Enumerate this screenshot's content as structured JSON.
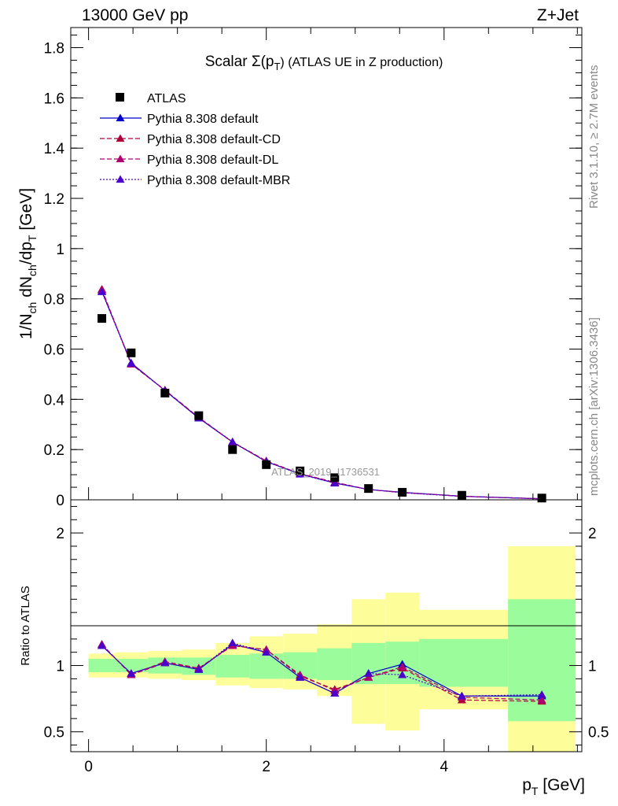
{
  "header": {
    "left": "13000 GeV pp",
    "right": "Z+Jet"
  },
  "side": {
    "rivet": "Rivet 3.1.10, ≥ 2.7M events",
    "mcplots": "mcplots.cern.ch [arXiv:1306.3436]"
  },
  "colors": {
    "data": "#000000",
    "default": "#0000cc",
    "default_cd": "#b0003a",
    "default_dl": "#b0006f",
    "default_mbr": "#4b00cc",
    "band_inner": "#9afc9a",
    "band_outer": "#fdfd9a"
  },
  "chart_data": [
    {
      "type": "scatter",
      "title": "Scalar Σ(p_T) (ATLAS UE in Z production)",
      "title_main": "Scalar Σ(p",
      "title_sub": "T",
      "title_rest": ") (ATLAS UE in Z production)",
      "ylabel": "1/N_ch dN_ch/dp_T [GeV]",
      "ylabel_parts": [
        "1/N",
        "ch",
        " dN",
        "ch",
        "/dp",
        "T",
        " [GeV]"
      ],
      "xlim": [
        -0.2,
        5.55
      ],
      "ylim": [
        0,
        1.88
      ],
      "yticks": [
        0,
        0.2,
        0.4,
        0.6,
        0.8,
        1,
        1.2,
        1.4,
        1.6,
        1.8
      ],
      "ytick_labels": [
        "0",
        "0.2",
        "0.4",
        "0.6",
        "0.8",
        "1",
        "1.2",
        "1.4",
        "1.6",
        "1.8"
      ],
      "watermark": "ATLAS_2019_I1736531",
      "x": [
        0.15,
        0.48,
        0.86,
        1.24,
        1.62,
        2.0,
        2.38,
        2.77,
        3.15,
        3.53,
        4.2,
        5.1
      ],
      "series": [
        {
          "name": "ATLAS",
          "style": "data",
          "color": "#000000",
          "values": [
            0.722,
            0.585,
            0.425,
            0.335,
            0.2,
            0.14,
            0.115,
            0.088,
            0.045,
            0.03,
            0.018,
            0.007
          ]
        },
        {
          "name": "Pythia 8.308 default",
          "style": "solid",
          "color": "#0000cc",
          "values": [
            0.83,
            0.545,
            0.435,
            0.325,
            0.23,
            0.152,
            0.103,
            0.067,
            0.041,
            0.03,
            0.014,
            0.004
          ]
        },
        {
          "name": "Pythia 8.308 default-CD",
          "style": "dashed",
          "color": "#b0003a",
          "values": [
            0.838,
            0.54,
            0.437,
            0.328,
            0.23,
            0.155,
            0.104,
            0.07,
            0.041,
            0.029,
            0.014,
            0.004
          ]
        },
        {
          "name": "Pythia 8.308 default-DL",
          "style": "dashed",
          "color": "#b0006f",
          "values": [
            0.835,
            0.54,
            0.436,
            0.327,
            0.229,
            0.153,
            0.104,
            0.069,
            0.041,
            0.029,
            0.014,
            0.004
          ]
        },
        {
          "name": "Pythia 8.308 default-MBR",
          "style": "dotted",
          "color": "#4b00cc",
          "values": [
            0.828,
            0.543,
            0.435,
            0.326,
            0.231,
            0.152,
            0.102,
            0.066,
            0.042,
            0.028,
            0.014,
            0.004
          ]
        }
      ]
    },
    {
      "type": "line",
      "title": "",
      "ylabel": "Ratio to ATLAS",
      "xlabel": "p_T [GeV]",
      "xlabel_main": "p",
      "xlabel_sub": "T",
      "xlabel_rest": " [GeV]",
      "xlim": [
        -0.2,
        5.55
      ],
      "ylim": [
        0.35,
        2.25
      ],
      "xticks": [
        0,
        2,
        4
      ],
      "xtick_labels": [
        "0",
        "2",
        "4"
      ],
      "yticks": [
        0.5,
        1,
        2
      ],
      "ytick_labels": [
        "0.5",
        "1",
        "2"
      ],
      "reference": 1,
      "bands": {
        "edges": [
          0.0,
          0.3,
          0.67,
          1.05,
          1.43,
          1.81,
          2.19,
          2.57,
          2.96,
          3.34,
          3.72,
          4.72,
          5.48
        ],
        "inner_low": [
          0.95,
          0.95,
          0.94,
          0.93,
          0.91,
          0.9,
          0.9,
          0.89,
          0.86,
          0.86,
          0.84,
          0.58
        ],
        "inner_high": [
          1.05,
          1.05,
          1.06,
          1.06,
          1.08,
          1.09,
          1.1,
          1.13,
          1.17,
          1.18,
          1.2,
          1.5
        ],
        "outer_low": [
          0.91,
          0.91,
          0.9,
          0.89,
          0.85,
          0.83,
          0.82,
          0.77,
          0.56,
          0.51,
          0.67,
          0.3
        ],
        "outer_high": [
          1.09,
          1.1,
          1.11,
          1.12,
          1.17,
          1.22,
          1.24,
          1.31,
          1.5,
          1.55,
          1.42,
          1.9
        ]
      },
      "x": [
        0.15,
        0.48,
        0.86,
        1.24,
        1.62,
        2.0,
        2.38,
        2.77,
        3.15,
        3.53,
        4.2,
        5.1
      ],
      "series": [
        {
          "name": "Pythia 8.308 default",
          "style": "solid",
          "color": "#0000cc",
          "values": [
            1.15,
            0.94,
            1.02,
            0.97,
            1.16,
            1.1,
            0.91,
            0.79,
            0.94,
            1.01,
            0.77,
            0.77
          ]
        },
        {
          "name": "Pythia 8.308 default-CD",
          "style": "dashed",
          "color": "#b0003a",
          "values": [
            1.16,
            0.93,
            1.02,
            0.98,
            1.15,
            1.12,
            0.92,
            0.82,
            0.91,
            0.98,
            0.74,
            0.73
          ]
        },
        {
          "name": "Pythia 8.308 default-DL",
          "style": "dashed",
          "color": "#b0006f",
          "values": [
            1.16,
            0.93,
            1.03,
            0.98,
            1.15,
            1.12,
            0.93,
            0.81,
            0.91,
            0.99,
            0.76,
            0.74
          ]
        },
        {
          "name": "Pythia 8.308 default-MBR",
          "style": "dotted",
          "color": "#4b00cc",
          "values": [
            1.15,
            0.94,
            1.02,
            0.97,
            1.17,
            1.1,
            0.91,
            0.79,
            0.94,
            0.93,
            0.77,
            0.78
          ]
        }
      ]
    }
  ]
}
